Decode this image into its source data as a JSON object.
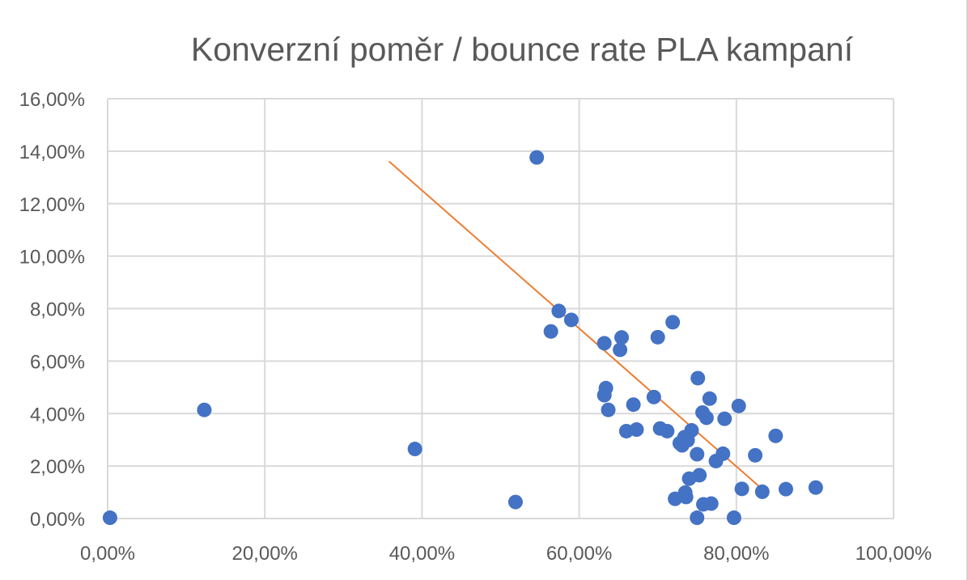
{
  "chart_data": {
    "type": "scatter",
    "title": "Konverzní poměr / bounce rate PLA kampaní",
    "xlabel": "",
    "ylabel": "",
    "xlim": [
      0,
      1.0
    ],
    "ylim": [
      0,
      0.16
    ],
    "x_ticks": [
      0,
      0.2,
      0.4,
      0.6,
      0.8,
      1.0
    ],
    "x_tick_labels": [
      "0,00%",
      "20,00%",
      "40,00%",
      "60,00%",
      "80,00%",
      "100,00%"
    ],
    "y_ticks": [
      0,
      0.02,
      0.04,
      0.06,
      0.08,
      0.1,
      0.12,
      0.14,
      0.16
    ],
    "y_tick_labels": [
      "0,00%",
      "2,00%",
      "4,00%",
      "6,00%",
      "8,00%",
      "10,00%",
      "12,00%",
      "14,00%",
      "16,00%"
    ],
    "grid": true,
    "colors": {
      "points": "#4472C4",
      "trendline": "#ED7D31",
      "grid": "#d9d9d9",
      "text": "#595959"
    },
    "series": [
      {
        "points": [
          [
            0.003,
            0.0003
          ],
          [
            0.123,
            0.0414
          ],
          [
            0.391,
            0.0265
          ],
          [
            0.519,
            0.0063
          ],
          [
            0.546,
            0.1376
          ],
          [
            0.564,
            0.0713
          ],
          [
            0.574,
            0.0791
          ],
          [
            0.59,
            0.0757
          ],
          [
            0.632,
            0.0668
          ],
          [
            0.632,
            0.047
          ],
          [
            0.634,
            0.0497
          ],
          [
            0.637,
            0.0414
          ],
          [
            0.652,
            0.0643
          ],
          [
            0.654,
            0.069
          ],
          [
            0.66,
            0.0333
          ],
          [
            0.669,
            0.0434
          ],
          [
            0.673,
            0.0339
          ],
          [
            0.695,
            0.0463
          ],
          [
            0.7,
            0.0691
          ],
          [
            0.703,
            0.0343
          ],
          [
            0.712,
            0.0333
          ],
          [
            0.719,
            0.0748
          ],
          [
            0.722,
            0.0075
          ],
          [
            0.728,
            0.0287
          ],
          [
            0.731,
            0.0279
          ],
          [
            0.734,
            0.031
          ],
          [
            0.735,
            0.0099
          ],
          [
            0.736,
            0.0082
          ],
          [
            0.738,
            0.0298
          ],
          [
            0.74,
            0.0152
          ],
          [
            0.743,
            0.0336
          ],
          [
            0.75,
            0.0245
          ],
          [
            0.75,
            0.0003
          ],
          [
            0.751,
            0.0535
          ],
          [
            0.753,
            0.0165
          ],
          [
            0.757,
            0.0404
          ],
          [
            0.758,
            0.0054
          ],
          [
            0.762,
            0.0384
          ],
          [
            0.766,
            0.0457
          ],
          [
            0.768,
            0.0057
          ],
          [
            0.774,
            0.0219
          ],
          [
            0.783,
            0.0247
          ],
          [
            0.785,
            0.038
          ],
          [
            0.797,
            0.0003
          ],
          [
            0.803,
            0.0429
          ],
          [
            0.807,
            0.0113
          ],
          [
            0.824,
            0.0241
          ],
          [
            0.833,
            0.0102
          ],
          [
            0.85,
            0.0315
          ],
          [
            0.863,
            0.0112
          ],
          [
            0.901,
            0.0118
          ]
        ]
      }
    ],
    "trendline": {
      "x": [
        0.358,
        0.831
      ],
      "y": [
        0.1361,
        0.0117
      ]
    }
  }
}
